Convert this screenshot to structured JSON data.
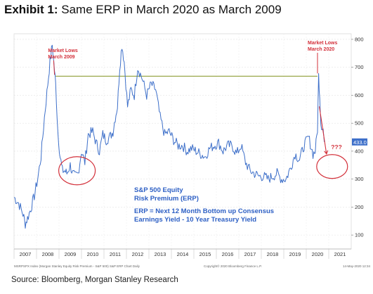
{
  "header": {
    "exhibit": "Exhibit 1:",
    "title": "Same ERP in March 2020 as March 2009"
  },
  "source": "Source: Bloomberg, Morgan Stanley Research",
  "footnotes": {
    "left": "MSRPSPX Index (Morgan Stanley Equity Risk Premium - S&P 500) S&P ERP Chart Daily",
    "center": "Copyright© 2020 Bloomberg Finance L.P.",
    "right": "14-May-2020 12:34"
  },
  "colors": {
    "line": "#3d6fc9",
    "reference": "#9aa84a",
    "annotation": "#d3303a",
    "text_blue": "#2d5fc4"
  },
  "chart_data": {
    "type": "line",
    "title": "Same ERP in March 2020 as March 2009",
    "x_axis_labels": [
      "2007",
      "2008",
      "2009",
      "2010",
      "2011",
      "2012",
      "2013",
      "2014",
      "2015",
      "2016",
      "2017",
      "2018",
      "2019",
      "2020",
      "2021"
    ],
    "xlim": [
      2006.5,
      2021.5
    ],
    "ylim": [
      50,
      820
    ],
    "y_ticks": [
      100,
      200,
      300,
      400,
      500,
      600,
      700,
      800
    ],
    "y_axis_side": "right",
    "last_value_label": "433.0",
    "last_value": 433,
    "reference_line": {
      "y": 668,
      "x_start": 2008.35,
      "x_end": 2020.0
    },
    "series": [
      {
        "x": [
          2006.5,
          2006.7,
          2006.9,
          2007.0,
          2007.1,
          2007.25,
          2007.4,
          2007.55,
          2007.7,
          2007.85,
          2008.0,
          2008.1,
          2008.2,
          2008.3,
          2008.35,
          2008.45,
          2008.55,
          2008.65,
          2008.75,
          2008.85,
          2009.0,
          2009.1,
          2009.2,
          2009.35,
          2009.5,
          2009.65,
          2009.8,
          2010.0,
          2010.15,
          2010.3,
          2010.45,
          2010.6,
          2010.75,
          2010.9,
          2011.0,
          2011.1,
          2011.2,
          2011.3,
          2011.4,
          2011.55,
          2011.7,
          2011.85,
          2012.0,
          2012.2,
          2012.4,
          2012.6,
          2012.8,
          2013.0,
          2013.2,
          2013.4,
          2013.6,
          2013.8,
          2014.0,
          2014.2,
          2014.4,
          2014.6,
          2014.8,
          2015.0,
          2015.2,
          2015.4,
          2015.6,
          2015.8,
          2016.0,
          2016.2,
          2016.4,
          2016.6,
          2016.8,
          2017.0,
          2017.2,
          2017.4,
          2017.6,
          2017.8,
          2018.0,
          2018.2,
          2018.4,
          2018.6,
          2018.8,
          2019.0,
          2019.2,
          2019.4,
          2019.6,
          2019.8,
          2019.9,
          2020.0,
          2020.05,
          2020.1,
          2020.15,
          2020.25,
          2020.3
        ],
        "values": [
          235,
          215,
          175,
          140,
          160,
          195,
          240,
          300,
          380,
          520,
          640,
          720,
          780,
          690,
          640,
          470,
          380,
          330,
          330,
          320,
          350,
          320,
          310,
          320,
          400,
          360,
          460,
          470,
          430,
          400,
          460,
          440,
          450,
          470,
          520,
          560,
          700,
          780,
          720,
          560,
          620,
          600,
          700,
          660,
          600,
          640,
          620,
          520,
          460,
          470,
          440,
          420,
          420,
          400,
          410,
          400,
          390,
          380,
          410,
          420,
          430,
          400,
          420,
          420,
          390,
          420,
          360,
          330,
          320,
          310,
          310,
          300,
          310,
          320,
          300,
          300,
          340,
          390,
          370,
          420,
          450,
          390,
          400,
          480,
          670,
          600,
          500,
          480,
          433
        ]
      }
    ],
    "annotations": [
      {
        "text": "Market Lows",
        "text2": "March 2009",
        "x": 2008.2,
        "y": 668
      },
      {
        "text": "Market Lows",
        "text2": "March 2020",
        "x": 2020.0,
        "y": 668
      },
      {
        "text": "???",
        "x": 2020.6,
        "y": 470
      }
    ],
    "legend_box": {
      "line1": "S&P 500 Equity",
      "line2": "Risk Premium (ERP)",
      "line3": "ERP = Next 12 Month Bottom up Consensus",
      "line4": "Earnings Yield - 10 Year Treasury Yield"
    }
  }
}
